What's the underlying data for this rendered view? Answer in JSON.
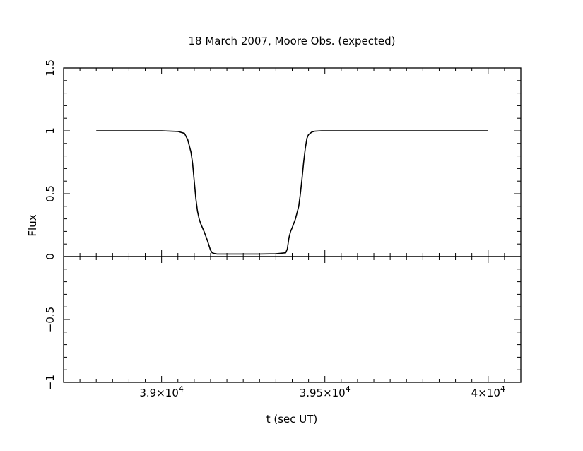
{
  "chart_data": {
    "type": "line",
    "title": "18 March 2007, Moore Obs. (expected)",
    "xlabel": "t (sec UT)",
    "ylabel": "Flux",
    "xlim": [
      38700,
      40100
    ],
    "ylim": [
      -1,
      1.5
    ],
    "x_ticks": [
      {
        "value": 39000,
        "mantissa": "3.9",
        "exp": "4"
      },
      {
        "value": 39500,
        "mantissa": "3.95",
        "exp": "4"
      },
      {
        "value": 40000,
        "mantissa": "4",
        "exp": "4"
      }
    ],
    "y_ticks": [
      {
        "value": 1.5,
        "label": "1.5"
      },
      {
        "value": 1,
        "label": "1"
      },
      {
        "value": 0.5,
        "label": "0.5"
      },
      {
        "value": 0,
        "label": "0"
      },
      {
        "value": -0.5,
        "label": "−0.5"
      },
      {
        "value": -1,
        "label": "−1"
      }
    ],
    "zero_line": true,
    "grid": false,
    "series": [
      {
        "x": [
          38800,
          38900,
          39000,
          39050,
          39070,
          39080,
          39090,
          39095,
          39100,
          39105,
          39110,
          39115,
          39120,
          39125,
          39130,
          39140,
          39150,
          39155,
          39160,
          39170,
          39180,
          39200,
          39250,
          39300,
          39350,
          39380,
          39385,
          39390,
          39395,
          39400,
          39410,
          39420,
          39425,
          39430,
          39435,
          39440,
          39445,
          39450,
          39460,
          39470,
          39490,
          39550,
          39700,
          40000
        ],
        "y": [
          1.0,
          1.0,
          1.0,
          0.995,
          0.98,
          0.93,
          0.83,
          0.74,
          0.6,
          0.46,
          0.36,
          0.3,
          0.26,
          0.23,
          0.2,
          0.13,
          0.05,
          0.03,
          0.025,
          0.02,
          0.02,
          0.02,
          0.02,
          0.02,
          0.022,
          0.03,
          0.06,
          0.15,
          0.2,
          0.23,
          0.3,
          0.4,
          0.5,
          0.62,
          0.75,
          0.86,
          0.94,
          0.97,
          0.99,
          0.997,
          1.0,
          1.0,
          1.0,
          1.0
        ]
      }
    ]
  }
}
